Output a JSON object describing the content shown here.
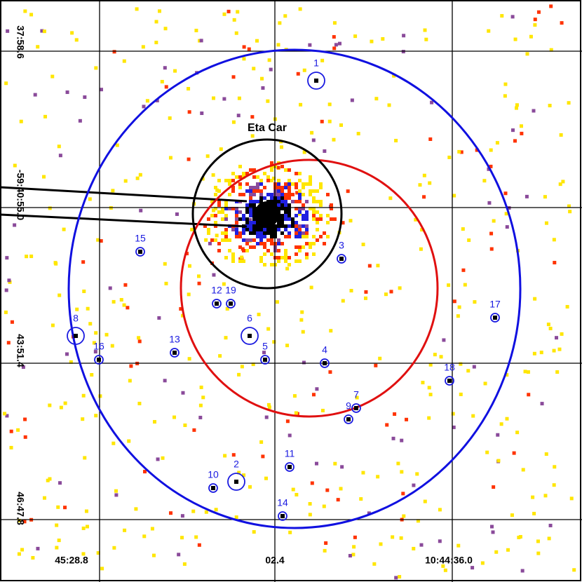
{
  "image": {
    "source_label": "Eta Car",
    "sources": [
      "1",
      "2",
      "3",
      "4",
      "5",
      "6",
      "7",
      "8",
      "9",
      "10",
      "11",
      "12",
      "13",
      "14",
      "15",
      "16",
      "17",
      "18",
      "19"
    ],
    "dec_labels": [
      "37:58.6",
      "-59:40:55.0",
      "43:51.4",
      "46:47.8"
    ],
    "ra_labels": [
      "45:28.8",
      "02.4",
      "10:44:36.0"
    ]
  }
}
